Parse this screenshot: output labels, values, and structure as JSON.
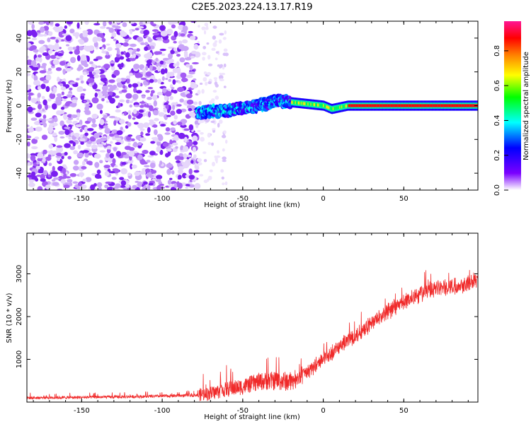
{
  "title": "C2E5.2023.224.13.17.R19",
  "colors": {
    "snr_line": "#f02a2a",
    "noise_purple": "#7a1ff0",
    "band_core": "#e23a2a",
    "axis": "#000000"
  },
  "colorbar": {
    "label": "Normalized spectral amplitude",
    "ticks": [
      {
        "value": 0.0,
        "label": "0.0"
      },
      {
        "value": 0.2,
        "label": "0.2"
      },
      {
        "value": 0.4,
        "label": "0.4"
      },
      {
        "value": 0.6,
        "label": "0.6"
      },
      {
        "value": 0.8,
        "label": "0.8"
      }
    ],
    "range": [
      0,
      0.97
    ],
    "colormap": "rainbow (white-purple-blue-cyan-green-yellow-orange-red-pink)"
  },
  "chart_data": [
    {
      "type": "heatmap",
      "title": "C2E5.2023.224.13.17.R19",
      "xlabel": "Height of straight line (km)",
      "ylabel": "Frequency (Hz)",
      "xlim": [
        -184,
        96
      ],
      "ylim": [
        -50,
        50
      ],
      "xticks": [
        {
          "value": -150,
          "label": "-150"
        },
        {
          "value": -100,
          "label": "-100"
        },
        {
          "value": -50,
          "label": "-50"
        },
        {
          "value": 0,
          "label": "0"
        },
        {
          "value": 50,
          "label": "50"
        }
      ],
      "yticks": [
        {
          "value": -40,
          "label": "-40"
        },
        {
          "value": -20,
          "label": "-20"
        },
        {
          "value": 0,
          "label": "0"
        },
        {
          "value": 20,
          "label": "20"
        },
        {
          "value": 40,
          "label": "40"
        }
      ],
      "regions": [
        {
          "x_range": [
            -184,
            -78
          ],
          "y_range": [
            -50,
            50
          ],
          "amplitude": 0.15
        },
        {
          "x_range": [
            -78,
            -60
          ],
          "y_range": [
            -50,
            50
          ],
          "amplitude": 0.05
        },
        {
          "x_range": [
            -78,
            -20
          ],
          "y_range": [
            -10,
            8
          ],
          "amplitude": 0.35
        },
        {
          "x_range": [
            -20,
            96
          ],
          "y_range": [
            -3,
            3
          ],
          "amplitude": 0.9
        }
      ],
      "band_center": [
        {
          "x": -78,
          "y": -4
        },
        {
          "x": -60,
          "y": -3
        },
        {
          "x": -40,
          "y": 0
        },
        {
          "x": -28,
          "y": 3
        },
        {
          "x": -20,
          "y": 2
        },
        {
          "x": -10,
          "y": 1
        },
        {
          "x": 0,
          "y": 0
        },
        {
          "x": 5,
          "y": -2
        },
        {
          "x": 15,
          "y": 0
        },
        {
          "x": 40,
          "y": 0
        },
        {
          "x": 96,
          "y": 0
        }
      ]
    },
    {
      "type": "line",
      "xlabel": "Height of straight line (km)",
      "ylabel": "SNR (10 * v/v)",
      "xlim": [
        -184,
        96
      ],
      "ylim": [
        0,
        3950
      ],
      "xticks": [
        {
          "value": -150,
          "label": "-150"
        },
        {
          "value": -100,
          "label": "-100"
        },
        {
          "value": -50,
          "label": "-50"
        },
        {
          "value": 0,
          "label": "0"
        },
        {
          "value": 50,
          "label": "50"
        }
      ],
      "yticks": [
        {
          "value": 1000,
          "label": "1000"
        },
        {
          "value": 2000,
          "label": "2000"
        },
        {
          "value": 3000,
          "label": "3000"
        }
      ],
      "series": [
        {
          "points": [
            {
              "x": -184,
              "y": 100
            },
            {
              "x": -150,
              "y": 110
            },
            {
              "x": -110,
              "y": 130
            },
            {
              "x": -80,
              "y": 160
            },
            {
              "x": -70,
              "y": 200
            },
            {
              "x": -60,
              "y": 300
            },
            {
              "x": -50,
              "y": 360
            },
            {
              "x": -40,
              "y": 480
            },
            {
              "x": -30,
              "y": 500
            },
            {
              "x": -20,
              "y": 480
            },
            {
              "x": -10,
              "y": 700
            },
            {
              "x": 0,
              "y": 1000
            },
            {
              "x": 10,
              "y": 1300
            },
            {
              "x": 20,
              "y": 1550
            },
            {
              "x": 30,
              "y": 1850
            },
            {
              "x": 40,
              "y": 2100
            },
            {
              "x": 50,
              "y": 2350
            },
            {
              "x": 60,
              "y": 2550
            },
            {
              "x": 70,
              "y": 2650
            },
            {
              "x": 80,
              "y": 2700
            },
            {
              "x": 90,
              "y": 2800
            },
            {
              "x": 96,
              "y": 2850
            }
          ]
        }
      ]
    }
  ]
}
